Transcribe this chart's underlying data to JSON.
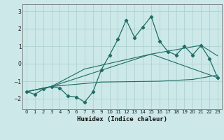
{
  "title": "",
  "xlabel": "Humidex (Indice chaleur)",
  "bg_color": "#cce8e8",
  "line_color": "#1e6e65",
  "grid_color": "#aacece",
  "axis_color": "#666666",
  "xlim": [
    -0.5,
    23.5
  ],
  "ylim": [
    -2.6,
    3.4
  ],
  "yticks": [
    -2,
    -1,
    0,
    1,
    2,
    3
  ],
  "xticks": [
    0,
    1,
    2,
    3,
    4,
    5,
    6,
    7,
    8,
    9,
    10,
    11,
    12,
    13,
    14,
    15,
    16,
    17,
    18,
    19,
    20,
    21,
    22,
    23
  ],
  "series1_x": [
    0,
    1,
    2,
    3,
    4,
    5,
    6,
    7,
    8,
    9,
    10,
    11,
    12,
    13,
    14,
    15,
    16,
    17,
    18,
    19,
    20,
    21,
    22,
    23
  ],
  "series1_y": [
    -1.6,
    -1.75,
    -1.45,
    -1.3,
    -1.4,
    -1.85,
    -1.9,
    -2.2,
    -1.6,
    -0.35,
    0.5,
    1.4,
    2.5,
    1.5,
    2.1,
    2.7,
    1.3,
    0.7,
    0.5,
    1.0,
    0.5,
    1.05,
    0.3,
    -0.8
  ],
  "series2_x": [
    0,
    3,
    7,
    15,
    21,
    23
  ],
  "series2_y": [
    -1.6,
    -1.3,
    -0.3,
    0.55,
    1.05,
    0.45
  ],
  "series3_x": [
    0,
    3,
    15,
    23
  ],
  "series3_y": [
    -1.6,
    -1.3,
    0.55,
    -0.8
  ],
  "series4_x": [
    0,
    3,
    9,
    16,
    20,
    23
  ],
  "series4_y": [
    -1.6,
    -1.3,
    -1.05,
    -1.0,
    -0.9,
    -0.65
  ]
}
